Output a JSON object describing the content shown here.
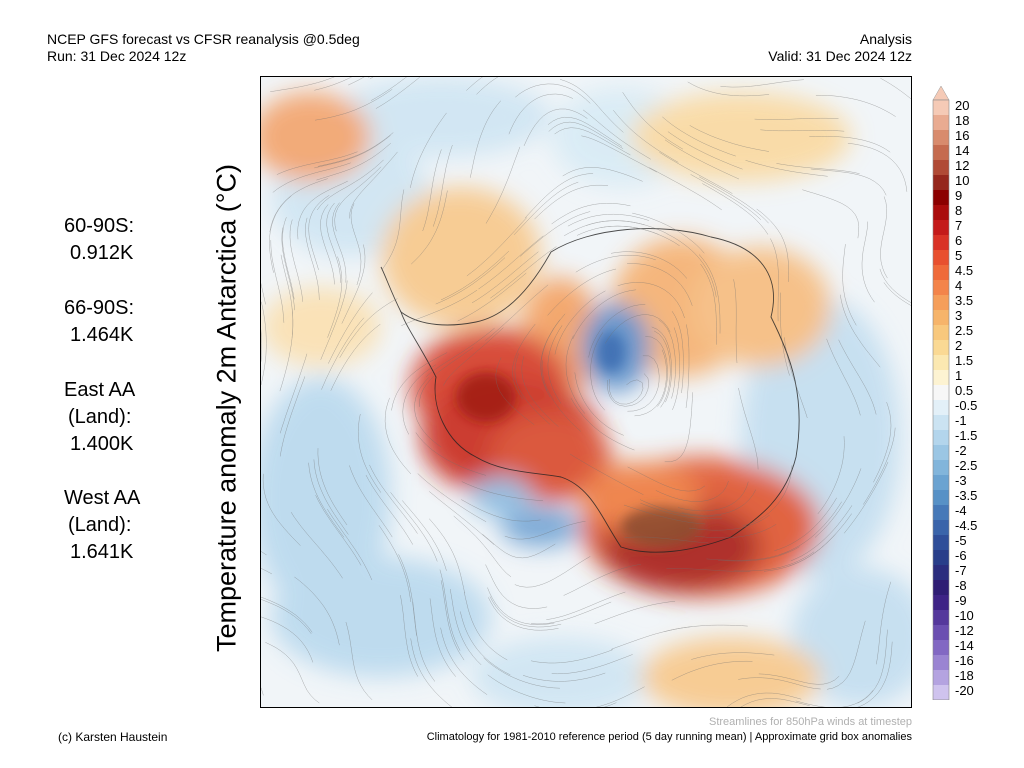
{
  "header": {
    "title": "NCEP GFS forecast vs CFSR reanalysis @0.5deg",
    "run": "Run: 31 Dec 2024 12z",
    "type": "Analysis",
    "valid": "Valid: 31 Dec 2024 12z"
  },
  "y_axis_label": "Temperature anomaly 2m Antarctica (°C)",
  "stats": [
    {
      "lines": [
        "60-90S:",
        "0.912K"
      ]
    },
    {
      "lines": [
        "66-90S:",
        "1.464K"
      ]
    },
    {
      "lines": [
        "East AA",
        "(Land):",
        "1.400K"
      ]
    },
    {
      "lines": [
        "West AA",
        "(Land):",
        "1.641K"
      ]
    }
  ],
  "colorbar": {
    "labels": [
      "20",
      "18",
      "16",
      "14",
      "12",
      "10",
      "9",
      "8",
      "7",
      "6",
      "5",
      "4.5",
      "4",
      "3.5",
      "3",
      "2.5",
      "2",
      "1.5",
      "1",
      "0.5",
      "-0.5",
      "-1",
      "-1.5",
      "-2",
      "-2.5",
      "-3",
      "-3.5",
      "-4",
      "-4.5",
      "-5",
      "-6",
      "-7",
      "-8",
      "-9",
      "-10",
      "-12",
      "-14",
      "-16",
      "-18",
      "-20"
    ],
    "colors": [
      "#f5cab6",
      "#e9ab91",
      "#d88b6d",
      "#c56b4f",
      "#b04a35",
      "#95271c",
      "#8b0000",
      "#aa0c0c",
      "#c41a1a",
      "#d93226",
      "#e8502f",
      "#ef6a3a",
      "#f3844a",
      "#f59e5a",
      "#f6b46a",
      "#f8c87d",
      "#fad994",
      "#fbe8b1",
      "#fdf3d2",
      "#f7f7f7",
      "#e3f0f8",
      "#cbe3f2",
      "#b3d5ec",
      "#9bc6e4",
      "#82b5db",
      "#6ba3d1",
      "#5791c6",
      "#4679b8",
      "#3a64aa",
      "#2f4e99",
      "#293e8a",
      "#2b2d7e",
      "#2f1d74",
      "#3e2386",
      "#55389c",
      "#6b4fb1",
      "#8268c3",
      "#9a84d2",
      "#b4a3e0",
      "#cfc3ee"
    ]
  },
  "footer": {
    "author": "(c) Karsten Haustein",
    "note": "Climatology for 1981-2010 reference period (5 day running mean) | Approximate grid box anomalies",
    "streamlines": "Streamlines for 850hPa winds at timestep"
  }
}
